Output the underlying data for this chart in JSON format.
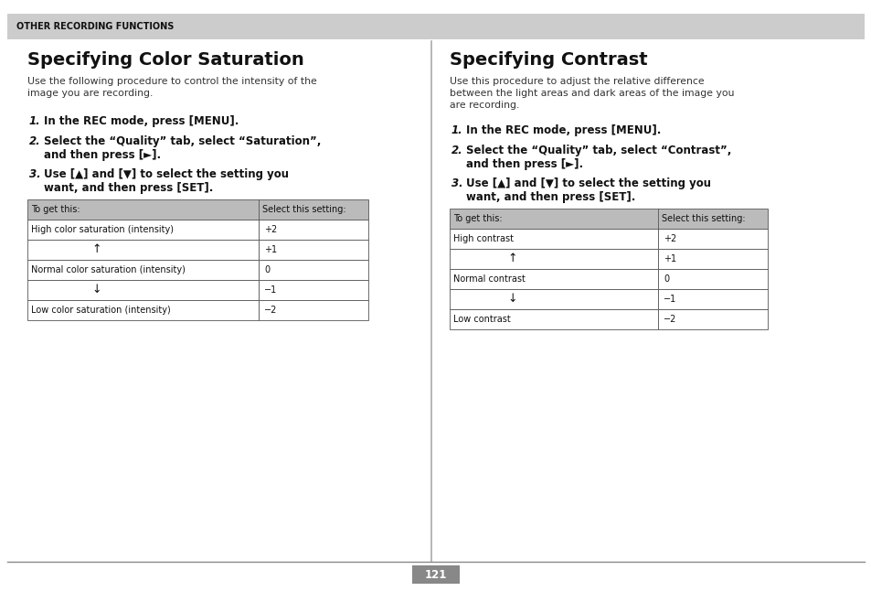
{
  "bg_color": "#ffffff",
  "header_bg": "#cccccc",
  "table_header_bg": "#b8b8b8",
  "header_text": "OTHER RECORDING FUNCTIONS",
  "left_title": "Specifying Color Saturation",
  "left_intro": "Use the following procedure to control the intensity of the\nimage you are recording.",
  "left_steps": [
    {
      "num": "1.",
      "bold": "In the REC mode, press [MENU]."
    },
    {
      "num": "2.",
      "bold": "Select the “Quality” tab, select “Saturation”,\nand then press [►]."
    },
    {
      "num": "3.",
      "bold": "Use [▲] and [▼] to select the setting you\nwant, and then press [SET]."
    }
  ],
  "left_table_header": [
    "To get this:",
    "Select this setting:"
  ],
  "left_table_rows": [
    [
      "High color saturation (intensity)",
      "+2"
    ],
    [
      "↑",
      "+1"
    ],
    [
      "Normal color saturation (intensity)",
      "0"
    ],
    [
      "↓",
      "−1"
    ],
    [
      "Low color saturation (intensity)",
      "−2"
    ]
  ],
  "right_title": "Specifying Contrast",
  "right_intro": "Use this procedure to adjust the relative difference\nbetween the light areas and dark areas of the image you\nare recording.",
  "right_steps": [
    {
      "num": "1.",
      "bold": "In the REC mode, press [MENU]."
    },
    {
      "num": "2.",
      "bold": "Select the “Quality” tab, select “Contrast”,\nand then press [►]."
    },
    {
      "num": "3.",
      "bold": "Use [▲] and [▼] to select the setting you\nwant, and then press [SET]."
    }
  ],
  "right_table_header": [
    "To get this:",
    "Select this setting:"
  ],
  "right_table_rows": [
    [
      "High contrast",
      "+2"
    ],
    [
      "↑",
      "+1"
    ],
    [
      "Normal contrast",
      "0"
    ],
    [
      "↓",
      "−1"
    ],
    [
      "Low contrast",
      "−2"
    ]
  ],
  "page_number": "121"
}
